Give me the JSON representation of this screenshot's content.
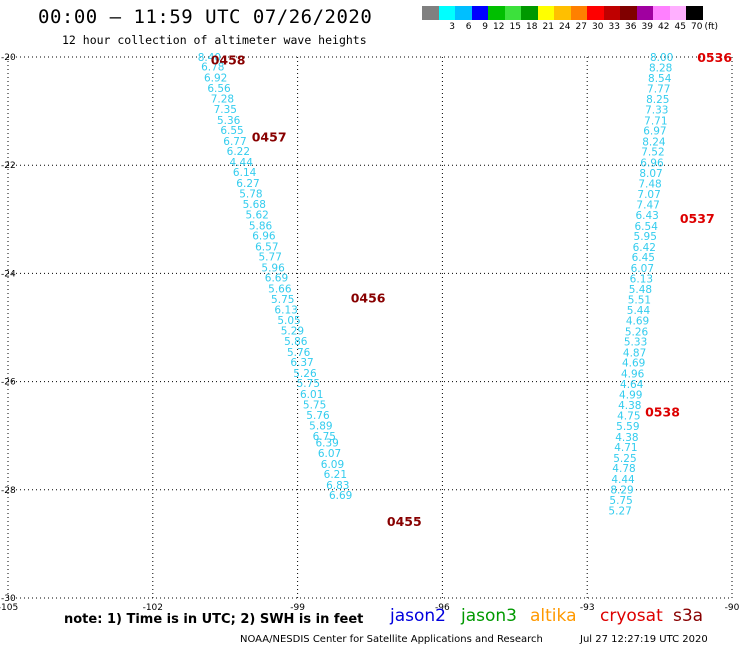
{
  "title": "00:00 – 11:59 UTC 07/26/2020",
  "subtitle": "12 hour collection of altimeter wave heights",
  "colorbar": {
    "colors": [
      "#808080",
      "#00ffff",
      "#00bfff",
      "#0000ff",
      "#00bf00",
      "#3ce13c",
      "#009900",
      "#ffff00",
      "#ffbf00",
      "#ff8000",
      "#ff0000",
      "#bf0000",
      "#800000",
      "#a000a0",
      "#ff80ff",
      "#ffb0ff",
      "#000000"
    ],
    "labels": [
      "",
      "3",
      "6",
      "9",
      "12",
      "15",
      "18",
      "21",
      "24",
      "27",
      "30",
      "33",
      "36",
      "39",
      "42",
      "45",
      "70"
    ],
    "unit": "(ft)"
  },
  "note": "note:  1) Time is in UTC;  2) SWH is in feet",
  "satellites": [
    {
      "name": "jason2",
      "color": "#0000dd"
    },
    {
      "name": "jason3",
      "color": "#009900"
    },
    {
      "name": "altika",
      "color": "#ff9900"
    },
    {
      "name": "cryosat",
      "color": "#dd0000"
    },
    {
      "name": "s3a",
      "color": "#880000"
    }
  ],
  "credit": "NOAA/NESDIS Center for Satellite Applications and Research",
  "timestamp": "Jul 27 12:27:19 UTC 2020",
  "chart_data": {
    "type": "scatter",
    "title": "00:00 – 11:59 UTC 07/26/2020",
    "subtitle": "12 hour collection of altimeter wave heights",
    "xlim": [
      -105,
      -90
    ],
    "ylim": [
      -30,
      -20
    ],
    "x_ticks": [
      "-105",
      "-102",
      "-99",
      "-96",
      "-93",
      "-90"
    ],
    "y_ticks": [
      "-20",
      "-22",
      "-24",
      "-26",
      "-28",
      "-30"
    ],
    "grid": true,
    "series": [
      {
        "name": "s3a",
        "color": "#33ccee",
        "label_color": "#880000",
        "points": [
          [
            -101.07,
            -20.0,
            "8.40"
          ],
          [
            -101.0,
            -20.18,
            "6.78"
          ],
          [
            -100.94,
            -20.38,
            "6.92"
          ],
          [
            -100.87,
            -20.57,
            "6.56"
          ],
          [
            -100.8,
            -20.77,
            "7.28"
          ],
          [
            -100.74,
            -20.96,
            "7.35"
          ],
          [
            -100.67,
            -21.16,
            "5.36"
          ],
          [
            -100.6,
            -21.35,
            "6.55"
          ],
          [
            -100.54,
            -21.55,
            "6.77"
          ],
          [
            -100.47,
            -21.74,
            "6.22"
          ],
          [
            -100.41,
            -21.94,
            "4.44"
          ],
          [
            -100.34,
            -22.13,
            "6.14"
          ],
          [
            -100.27,
            -22.33,
            "6.27"
          ],
          [
            -100.21,
            -22.52,
            "5.78"
          ],
          [
            -100.14,
            -22.72,
            "5.68"
          ],
          [
            -100.08,
            -22.91,
            "5.62"
          ],
          [
            -100.01,
            -23.11,
            "5.86"
          ],
          [
            -99.94,
            -23.3,
            "6.96"
          ],
          [
            -99.88,
            -23.5,
            "6.57"
          ],
          [
            -99.81,
            -23.69,
            "5.77"
          ],
          [
            -99.75,
            -23.89,
            "5.96"
          ],
          [
            -99.68,
            -24.08,
            "6.69"
          ],
          [
            -99.61,
            -24.28,
            "5.66"
          ],
          [
            -99.55,
            -24.47,
            "5.75"
          ],
          [
            -99.48,
            -24.67,
            "6.13"
          ],
          [
            -99.42,
            -24.86,
            "5.05"
          ],
          [
            -99.35,
            -25.06,
            "5.29"
          ],
          [
            -99.28,
            -25.25,
            "5.86"
          ],
          [
            -99.22,
            -25.45,
            "5.76"
          ],
          [
            -99.15,
            -25.64,
            "6.37"
          ],
          [
            -99.09,
            -25.84,
            "5.26"
          ],
          [
            -99.02,
            -26.03,
            "5.75"
          ],
          [
            -98.95,
            -26.23,
            "6.01"
          ],
          [
            -98.89,
            -26.42,
            "5.75"
          ],
          [
            -98.82,
            -26.62,
            "5.76"
          ],
          [
            -98.76,
            -26.81,
            "5.89"
          ],
          [
            -98.69,
            -27.01,
            "6.75"
          ],
          [
            -98.63,
            -27.13,
            "6.39"
          ],
          [
            -98.58,
            -27.32,
            "6.07"
          ],
          [
            -98.52,
            -27.52,
            "6.09"
          ],
          [
            -98.46,
            -27.71,
            "6.21"
          ],
          [
            -98.41,
            -27.91,
            "6.83"
          ],
          [
            -98.35,
            -28.1,
            "6.69"
          ]
        ],
        "time_labels": [
          [
            -100.8,
            -20.05,
            "0458"
          ],
          [
            -99.95,
            -21.47,
            "0457"
          ],
          [
            -97.9,
            -24.45,
            "0456"
          ],
          [
            -97.15,
            -28.58,
            "0455"
          ]
        ]
      },
      {
        "name": "cryosat",
        "color": "#33ccee",
        "label_color": "#dd0000",
        "points": [
          [
            -91.7,
            -20.0,
            "8.00"
          ],
          [
            -91.72,
            -20.19,
            "8.28"
          ],
          [
            -91.74,
            -20.39,
            "8.54"
          ],
          [
            -91.76,
            -20.58,
            "7.77"
          ],
          [
            -91.78,
            -20.78,
            "8.25"
          ],
          [
            -91.8,
            -20.97,
            "7.33"
          ],
          [
            -91.82,
            -21.17,
            "7.71"
          ],
          [
            -91.84,
            -21.36,
            "6.97"
          ],
          [
            -91.86,
            -21.56,
            "8.24"
          ],
          [
            -91.88,
            -21.75,
            "7.52"
          ],
          [
            -91.9,
            -21.95,
            "6.96"
          ],
          [
            -91.92,
            -22.14,
            "8.07"
          ],
          [
            -91.94,
            -22.34,
            "7.48"
          ],
          [
            -91.96,
            -22.53,
            "7.07"
          ],
          [
            -91.98,
            -22.73,
            "7.47"
          ],
          [
            -92.0,
            -22.92,
            "6.43"
          ],
          [
            -92.02,
            -23.12,
            "6.54"
          ],
          [
            -92.04,
            -23.31,
            "5.95"
          ],
          [
            -92.06,
            -23.51,
            "6.42"
          ],
          [
            -92.08,
            -23.7,
            "6.45"
          ],
          [
            -92.1,
            -23.9,
            "6.07"
          ],
          [
            -92.12,
            -24.09,
            "6.13"
          ],
          [
            -92.14,
            -24.29,
            "5.48"
          ],
          [
            -92.16,
            -24.48,
            "5.51"
          ],
          [
            -92.18,
            -24.68,
            "5.44"
          ],
          [
            -92.2,
            -24.87,
            "4.69"
          ],
          [
            -92.22,
            -25.07,
            "5.26"
          ],
          [
            -92.24,
            -25.26,
            "5.33"
          ],
          [
            -92.26,
            -25.46,
            "4.87"
          ],
          [
            -92.28,
            -25.65,
            "4.69"
          ],
          [
            -92.3,
            -25.85,
            "4.96"
          ],
          [
            -92.32,
            -26.04,
            "4.64"
          ],
          [
            -92.34,
            -26.24,
            "4.99"
          ],
          [
            -92.36,
            -26.43,
            "4.38"
          ],
          [
            -92.38,
            -26.63,
            "4.75"
          ],
          [
            -92.4,
            -26.82,
            "5.59"
          ],
          [
            -92.42,
            -27.02,
            "4.38"
          ],
          [
            -92.44,
            -27.21,
            "4.71"
          ],
          [
            -92.46,
            -27.41,
            "5.25"
          ],
          [
            -92.48,
            -27.6,
            "4.78"
          ],
          [
            -92.5,
            -27.8,
            "4.44"
          ],
          [
            -92.52,
            -27.99,
            "8.29"
          ],
          [
            -92.54,
            -28.19,
            "5.75"
          ],
          [
            -92.56,
            -28.38,
            "5.27"
          ]
        ],
        "time_labels": [
          [
            -90.72,
            -20.0,
            "0536"
          ],
          [
            -91.08,
            -22.98,
            "0537"
          ],
          [
            -91.8,
            -26.55,
            "0538"
          ]
        ]
      }
    ]
  }
}
